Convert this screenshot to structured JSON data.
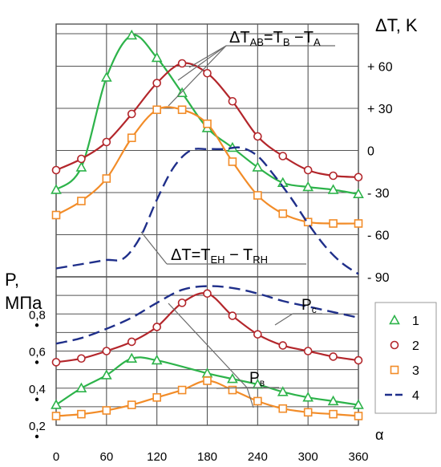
{
  "chart_data": {
    "type": "line",
    "title": "",
    "xlabel": "α",
    "x_ticks": [
      0,
      60,
      120,
      180,
      240,
      300,
      360
    ],
    "xlim": [
      0,
      360
    ],
    "upper": {
      "ylabel": "ΔT, K",
      "y_tick_labels": [
        "+ 60",
        "+ 30",
        "0",
        "- 30",
        "- 60",
        "- 90"
      ],
      "y_tick_values": [
        60,
        30,
        0,
        -30,
        -60,
        -90
      ],
      "ylim": [
        -90,
        90
      ],
      "annotations": [
        {
          "text": "ΔT_AB = T_B − T_A",
          "main": "ΔT",
          "sub1": "AB",
          "eq": "=T",
          "sub2": "B",
          "minus": " −T",
          "sub3": "A"
        },
        {
          "text": "ΔT = T_EH − T_RH",
          "main": "ΔT=T",
          "sub1": "EH",
          "minus": " − T",
          "sub2": "RH"
        }
      ]
    },
    "lower": {
      "ylabel_line1": "P,",
      "ylabel_line2": "MПa",
      "y_tick_labels": [
        "0,8",
        "0,6",
        "0,4",
        "0,2"
      ],
      "y_tick_values": [
        0.8,
        0.6,
        0.4,
        0.2
      ],
      "ylim": [
        0.2,
        1.0
      ],
      "annotations": [
        {
          "text": "Pc",
          "main": "P",
          "sub": "c"
        },
        {
          "text": "Pв",
          "main": "P",
          "sub": "в"
        }
      ]
    },
    "legend": {
      "position": "right",
      "entries": [
        {
          "label": "1",
          "marker": "triangle",
          "color": "#2db34a"
        },
        {
          "label": "2",
          "marker": "circle",
          "color": "#b3262b"
        },
        {
          "label": "3",
          "marker": "square",
          "color": "#f28c28"
        },
        {
          "label": "4",
          "marker": "dash",
          "color": "#1f2f8a"
        }
      ]
    },
    "series": [
      {
        "id": "dT1",
        "panel": "upper",
        "marker": "triangle",
        "color": "#2db34a",
        "x": [
          0,
          30,
          60,
          90,
          120,
          150,
          180,
          210,
          240,
          270,
          300,
          330,
          360
        ],
        "y": [
          -28,
          -12,
          52,
          82,
          66,
          41,
          16,
          2,
          -12,
          -23,
          -26,
          -28,
          -31
        ]
      },
      {
        "id": "dT2",
        "panel": "upper",
        "marker": "circle",
        "color": "#b3262b",
        "x": [
          0,
          30,
          60,
          90,
          120,
          150,
          180,
          210,
          240,
          270,
          300,
          330,
          360
        ],
        "y": [
          -14,
          -6,
          6,
          26,
          48,
          62,
          55,
          35,
          10,
          -4,
          -14,
          -18,
          -19
        ]
      },
      {
        "id": "dT3",
        "panel": "upper",
        "marker": "square",
        "color": "#f28c28",
        "x": [
          0,
          30,
          60,
          90,
          120,
          150,
          180,
          210,
          240,
          270,
          300,
          330,
          360
        ],
        "y": [
          -46,
          -36,
          -20,
          9,
          29,
          29,
          19,
          -8,
          -32,
          -45,
          -51,
          -52,
          -52
        ]
      },
      {
        "id": "dT4",
        "panel": "upper",
        "marker": "none",
        "color": "#1f2f8a",
        "dashed": true,
        "x": [
          0,
          20,
          40,
          60,
          80,
          100,
          120,
          140,
          160,
          180,
          200,
          220,
          240,
          260,
          280,
          300,
          320,
          340,
          360
        ],
        "y": [
          -84,
          -82,
          -80,
          -78,
          -77,
          -62,
          -35,
          -12,
          0,
          1,
          1,
          2,
          -4,
          -18,
          -34,
          -52,
          -68,
          -80,
          -88
        ]
      },
      {
        "id": "P1",
        "panel": "lower",
        "marker": "triangle",
        "color": "#2db34a",
        "x": [
          0,
          30,
          60,
          90,
          120,
          180,
          210,
          240,
          270,
          300,
          330,
          360
        ],
        "y": [
          0.31,
          0.4,
          0.47,
          0.56,
          0.55,
          0.48,
          0.45,
          0.42,
          0.38,
          0.35,
          0.33,
          0.31
        ]
      },
      {
        "id": "P2",
        "panel": "lower",
        "marker": "circle",
        "color": "#b3262b",
        "x": [
          0,
          30,
          60,
          90,
          120,
          150,
          180,
          210,
          240,
          270,
          300,
          330,
          360
        ],
        "y": [
          0.54,
          0.56,
          0.6,
          0.65,
          0.73,
          0.86,
          0.91,
          0.79,
          0.69,
          0.63,
          0.6,
          0.57,
          0.55
        ]
      },
      {
        "id": "P3",
        "panel": "lower",
        "marker": "square",
        "color": "#f28c28",
        "x": [
          0,
          30,
          60,
          90,
          120,
          150,
          180,
          210,
          240,
          270,
          300,
          330,
          360
        ],
        "y": [
          0.25,
          0.26,
          0.28,
          0.31,
          0.35,
          0.39,
          0.44,
          0.39,
          0.33,
          0.29,
          0.27,
          0.26,
          0.25
        ]
      },
      {
        "id": "P4",
        "panel": "lower",
        "marker": "none",
        "color": "#1f2f8a",
        "dashed": true,
        "x": [
          0,
          30,
          60,
          90,
          120,
          150,
          180,
          210,
          240,
          270,
          300,
          330,
          360
        ],
        "y": [
          0.64,
          0.67,
          0.72,
          0.78,
          0.86,
          0.93,
          0.95,
          0.94,
          0.91,
          0.87,
          0.84,
          0.81,
          0.78
        ]
      }
    ]
  }
}
